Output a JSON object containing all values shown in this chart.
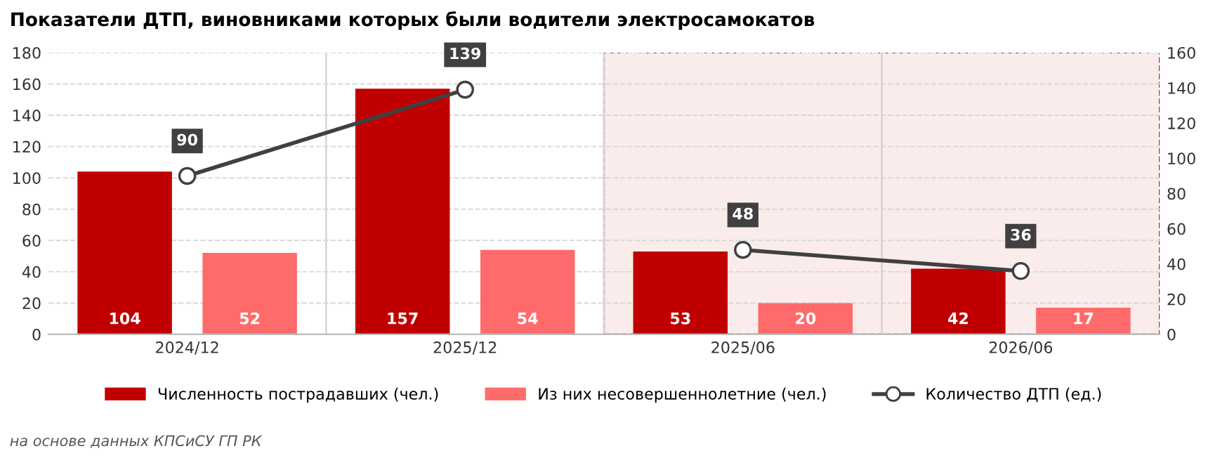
{
  "chart_data": {
    "type": "bar",
    "title": "Показатели ДТП, виновниками которых были водители электросамокатов",
    "categories": [
      "2024/12",
      "2025/12",
      "2025/06",
      "2026/06"
    ],
    "series": [
      {
        "name": "Численность пострадавших (чел.)",
        "color": "#c00000",
        "values": [
          104,
          157,
          53,
          42
        ]
      },
      {
        "name": "Из них несовершеннолетние (чел.)",
        "color": "#ff6b6b",
        "values": [
          52,
          54,
          20,
          17
        ]
      },
      {
        "name": "Количество ДТП (ед.)",
        "type": "line",
        "axis": "y2",
        "color": "#404040",
        "values": [
          90,
          139,
          null,
          null
        ]
      },
      {
        "type": "line",
        "axis": "y2",
        "color": "#404040",
        "values": [
          null,
          null,
          48,
          36
        ]
      }
    ],
    "ylim": [
      0,
      180
    ],
    "yticks": [
      0,
      20,
      40,
      60,
      80,
      100,
      120,
      140,
      160,
      180
    ],
    "y2lim": [
      0,
      160
    ],
    "y2ticks": [
      0,
      20,
      40,
      60,
      80,
      100,
      120,
      140,
      160
    ],
    "bands": [
      {
        "axis": "x",
        "from": "2025/06",
        "to": "2026/06",
        "color": "#fbecec"
      }
    ],
    "data_labels": true,
    "grid": true,
    "legend": "bottom",
    "marker": "circle",
    "annotations": [
      "на основе данных КПСиСУ ГП РК"
    ]
  }
}
